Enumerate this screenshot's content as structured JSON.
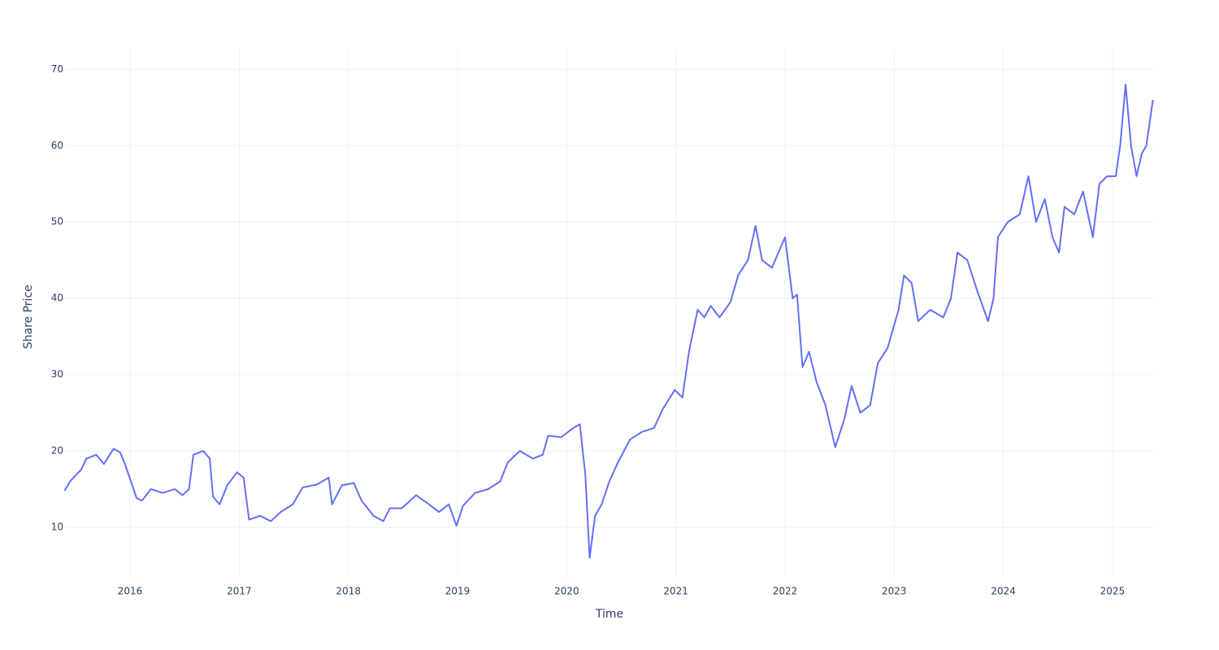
{
  "chart_data": {
    "type": "line",
    "x_label": "Time",
    "y_label": "Share Price",
    "color": "#636efa",
    "grid": true,
    "xlim": [
      2015.404,
      2025.38
    ],
    "ylim": [
      3.5,
      72.7
    ],
    "xticks": [
      2016,
      2017,
      2018,
      2019,
      2020,
      2021,
      2022,
      2023,
      2024,
      2025
    ],
    "yticks": [
      10,
      20,
      30,
      40,
      50,
      60,
      70
    ],
    "x": [
      2015.4,
      2015.45,
      2015.5,
      2015.55,
      2015.6,
      2015.69,
      2015.76,
      2015.85,
      2015.91,
      2015.96,
      2016.02,
      2016.06,
      2016.11,
      2016.19,
      2016.3,
      2016.41,
      2016.48,
      2016.54,
      2016.58,
      2016.67,
      2016.73,
      2016.76,
      2016.82,
      2016.89,
      2016.98,
      2017.04,
      2017.09,
      2017.19,
      2017.29,
      2017.38,
      2017.49,
      2017.58,
      2017.71,
      2017.82,
      2017.85,
      2017.94,
      2018.05,
      2018.12,
      2018.23,
      2018.32,
      2018.38,
      2018.49,
      2018.62,
      2018.72,
      2018.83,
      2018.92,
      2018.99,
      2019.05,
      2019.16,
      2019.28,
      2019.39,
      2019.46,
      2019.57,
      2019.69,
      2019.78,
      2019.83,
      2019.95,
      2020.06,
      2020.12,
      2020.17,
      2020.21,
      2020.26,
      2020.32,
      2020.39,
      2020.47,
      2020.58,
      2020.69,
      2020.8,
      2020.88,
      2020.99,
      2021.06,
      2021.12,
      2021.2,
      2021.26,
      2021.32,
      2021.4,
      2021.5,
      2021.57,
      2021.66,
      2021.73,
      2021.79,
      2021.88,
      2021.94,
      2022.0,
      2022.07,
      2022.11,
      2022.16,
      2022.22,
      2022.29,
      2022.37,
      2022.46,
      2022.54,
      2022.61,
      2022.69,
      2022.78,
      2022.85,
      2022.94,
      2023.04,
      2023.09,
      2023.16,
      2023.22,
      2023.33,
      2023.45,
      2023.52,
      2023.58,
      2023.67,
      2023.76,
      2023.86,
      2023.91,
      2023.95,
      2024.04,
      2024.15,
      2024.23,
      2024.3,
      2024.38,
      2024.45,
      2024.51,
      2024.56,
      2024.65,
      2024.73,
      2024.82,
      2024.88,
      2024.95,
      2025.03,
      2025.07,
      2025.12,
      2025.17,
      2025.22,
      2025.27,
      2025.31,
      2025.37
    ],
    "values": [
      14.8,
      16.0,
      16.8,
      17.5,
      19.0,
      19.5,
      18.3,
      20.3,
      19.8,
      18.0,
      15.5,
      13.8,
      13.5,
      15.0,
      14.5,
      15.0,
      14.2,
      15.0,
      19.5,
      20.0,
      19.0,
      14.0,
      13.0,
      15.5,
      17.2,
      16.5,
      11.0,
      11.5,
      10.8,
      12.0,
      13.0,
      15.2,
      15.6,
      16.5,
      13.0,
      15.5,
      15.8,
      13.5,
      11.5,
      10.8,
      12.5,
      12.5,
      14.2,
      13.2,
      12.0,
      13.0,
      10.2,
      12.8,
      14.5,
      15.0,
      16.0,
      18.5,
      20.0,
      19.0,
      19.5,
      22.0,
      21.8,
      23.0,
      23.5,
      17.0,
      6.0,
      11.5,
      13.0,
      16.0,
      18.5,
      21.5,
      22.5,
      23.0,
      25.5,
      28.0,
      27.0,
      33.0,
      38.5,
      37.5,
      39.0,
      37.5,
      39.5,
      43.0,
      45.0,
      49.5,
      45.0,
      44.0,
      46.0,
      48.0,
      40.0,
      40.5,
      31.0,
      33.0,
      29.0,
      26.0,
      20.5,
      24.0,
      28.5,
      25.0,
      26.0,
      31.5,
      33.5,
      38.5,
      43.0,
      42.0,
      37.0,
      38.5,
      37.5,
      40.0,
      46.0,
      45.0,
      41.0,
      37.0,
      40.0,
      48.0,
      50.0,
      51.0,
      56.0,
      50.0,
      53.0,
      48.0,
      46.0,
      52.0,
      51.0,
      54.0,
      48.0,
      55.0,
      56.0,
      56.0,
      60.0,
      68.0,
      60.0,
      56.0,
      59.0,
      60.0,
      66.0
    ]
  }
}
